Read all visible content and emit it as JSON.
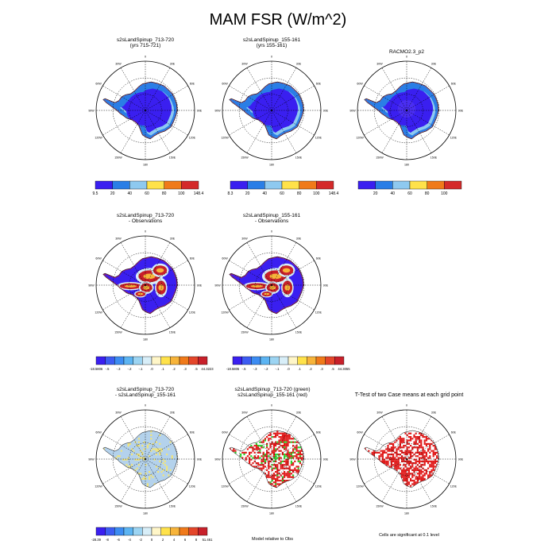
{
  "title": "MAM FSR (W/m^2)",
  "colors": {
    "background": "#ffffff",
    "ocean": "#ffffff",
    "land_border": "#000000",
    "abs_palette": [
      "#3a1ff0",
      "#2a7ee6",
      "#8ec9f0",
      "#ffe24a",
      "#f07a1a",
      "#d42a2a"
    ],
    "diff_palette": [
      "#3a1ff0",
      "#3c5cf2",
      "#3c8cf2",
      "#5cb4f2",
      "#9cd4f2",
      "#d8eef8",
      "#fff6c8",
      "#ffe24a",
      "#f7b43a",
      "#f07a1a",
      "#e4462a",
      "#c8202a"
    ],
    "pale_blue": "#b4d2ec",
    "yellow": "#f2e47a",
    "green": "#2ad02a",
    "red": "#e01818"
  },
  "lon_labels": [
    "0",
    "30E",
    "60E",
    "90E",
    "120E",
    "150E",
    "180",
    "150W",
    "120W",
    "90W",
    "60W",
    "30W"
  ],
  "rows": [
    {
      "panels": [
        {
          "title_line1": "s2sLandSpinup_713-720",
          "title_line2": "(yrs 715-721)",
          "style": "abs"
        },
        {
          "title_line1": "s2sLandSpinup_155-161",
          "title_line2": "(yrs 155-161)",
          "style": "abs"
        },
        {
          "title_line1": "RACMO2.3_p2",
          "title_line2": "",
          "style": "abs"
        }
      ],
      "colorbars": [
        {
          "palette": "abs",
          "labels": [
            "9.5",
            "20",
            "40",
            "60",
            "80",
            "100",
            "148.4"
          ],
          "end_labels": true
        },
        {
          "palette": "abs",
          "labels": [
            "8.3",
            "20",
            "40",
            "60",
            "80",
            "100",
            "148.4"
          ],
          "end_labels": true
        },
        {
          "palette": "abs",
          "labels": [
            "20",
            "40",
            "60",
            "80",
            "100"
          ],
          "end_labels": false
        }
      ]
    },
    {
      "panels": [
        {
          "title_line1": "s2sLandSpinup_713-720",
          "title_line2": "- Observations",
          "style": "diff"
        },
        {
          "title_line1": "s2sLandSpinup_155-161",
          "title_line2": "- Observations",
          "style": "diff"
        }
      ],
      "colorbars": [
        {
          "palette": "diff",
          "labels": [
            "-18.5806",
            "-.5",
            "-.3",
            "-.2",
            "-.1",
            ".0",
            ".1",
            ".2",
            ".3",
            ".5",
            "44.3223"
          ],
          "end_labels": true
        },
        {
          "palette": "diff",
          "labels": [
            "-18.5805",
            "-.5",
            "-.3",
            "-.2",
            "-.1",
            ".0",
            ".1",
            ".2",
            ".3",
            ".5",
            "44.3055"
          ],
          "end_labels": true
        }
      ]
    },
    {
      "panels": [
        {
          "title_line1": "s2sLandSpinup_713-720",
          "title_line2": "- s2sLandSpinup_155-161",
          "style": "case_diff"
        },
        {
          "title_line1": "s2sLandSpinup_713-720 (green)",
          "title_line2": "s2sLandSpinup_155-161 (red)",
          "style": "green_red"
        },
        {
          "title_line1": "T-Test of two Case means at each grid point",
          "title_line2": "",
          "style": "ttest"
        }
      ],
      "colorbars": [
        {
          "palette": "diff",
          "labels": [
            "-28.39",
            "-8",
            "-6",
            "-4",
            "-2",
            "0",
            "2",
            "4",
            "6",
            "8",
            "51.461"
          ],
          "end_labels": true
        }
      ],
      "notes": [
        "Model relative to Obs",
        "Cells are significant at 0.1 level"
      ]
    }
  ],
  "chart_data": [
    {
      "type": "heatmap",
      "title": "s2sLandSpinup_713-720 (yrs 715-721)",
      "projection": "south-polar-stereographic",
      "colorbar_range": [
        9.5,
        148.4
      ],
      "colorbar_levels": [
        20,
        40,
        60,
        80,
        100
      ]
    },
    {
      "type": "heatmap",
      "title": "s2sLandSpinup_155-161 (yrs 155-161)",
      "projection": "south-polar-stereographic",
      "colorbar_range": [
        8.3,
        148.4
      ],
      "colorbar_levels": [
        20,
        40,
        60,
        80,
        100
      ]
    },
    {
      "type": "heatmap",
      "title": "RACMO2.3_p2",
      "projection": "south-polar-stereographic",
      "colorbar_levels": [
        20,
        40,
        60,
        80,
        100
      ]
    },
    {
      "type": "heatmap",
      "title": "s2sLandSpinup_713-720 - Observations",
      "colorbar_range": [
        -18.5806,
        44.3223
      ],
      "colorbar_levels": [
        -0.5,
        -0.3,
        -0.2,
        -0.1,
        0.0,
        0.1,
        0.2,
        0.3,
        0.5
      ]
    },
    {
      "type": "heatmap",
      "title": "s2sLandSpinup_155-161 - Observations",
      "colorbar_range": [
        -18.5805,
        44.3055
      ],
      "colorbar_levels": [
        -0.5,
        -0.3,
        -0.2,
        -0.1,
        0.0,
        0.1,
        0.2,
        0.3,
        0.5
      ]
    },
    {
      "type": "heatmap",
      "title": "s2sLandSpinup_713-720 - s2sLandSpinup_155-161",
      "colorbar_range": [
        -28.39,
        51.461
      ],
      "colorbar_levels": [
        -8,
        -6,
        -4,
        -2,
        0,
        2,
        4,
        6,
        8
      ]
    },
    {
      "type": "heatmap",
      "title": "Model relative to Obs",
      "legend": [
        "s2sLandSpinup_713-720 (green)",
        "s2sLandSpinup_155-161 (red)"
      ]
    },
    {
      "type": "heatmap",
      "title": "T-Test of two Case means at each grid point",
      "annotation": "Cells are significant at 0.1 level"
    }
  ]
}
